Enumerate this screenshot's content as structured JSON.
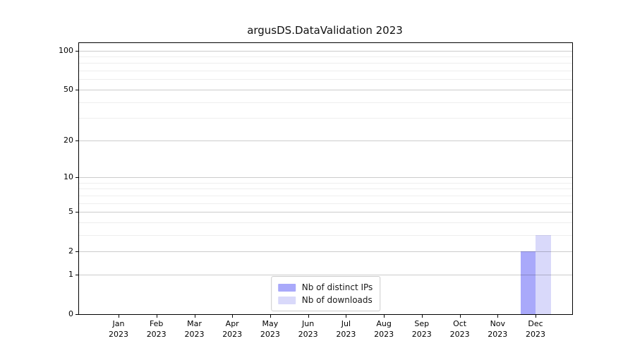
{
  "chart_data": {
    "type": "bar",
    "title": "argusDS.DataValidation 2023",
    "categories": [
      "Jan 2023",
      "Feb 2023",
      "Mar 2023",
      "Apr 2023",
      "May 2023",
      "Jun 2023",
      "Jul 2023",
      "Aug 2023",
      "Sep 2023",
      "Oct 2023",
      "Nov 2023",
      "Dec 2023"
    ],
    "series": [
      {
        "name": "Nb of distinct IPs",
        "color": "#a9a9fa",
        "values": [
          0,
          0,
          0,
          0,
          0,
          0,
          0,
          0,
          0,
          0,
          0,
          2
        ]
      },
      {
        "name": "Nb of downloads",
        "color": "#d9d9fa",
        "values": [
          0,
          0,
          0,
          0,
          0,
          0,
          0,
          0,
          0,
          0,
          0,
          3
        ]
      }
    ],
    "xlabel": "",
    "ylabel": "",
    "yscale": "log1p",
    "ylim": [
      0,
      114
    ],
    "y_major_ticks": [
      0,
      1,
      2,
      5,
      10,
      20,
      50,
      100
    ],
    "y_minor_ticks": [
      3,
      4,
      6,
      7,
      8,
      9,
      30,
      40,
      60,
      70,
      80,
      90
    ],
    "grid": true,
    "legend_position": "lower center"
  }
}
